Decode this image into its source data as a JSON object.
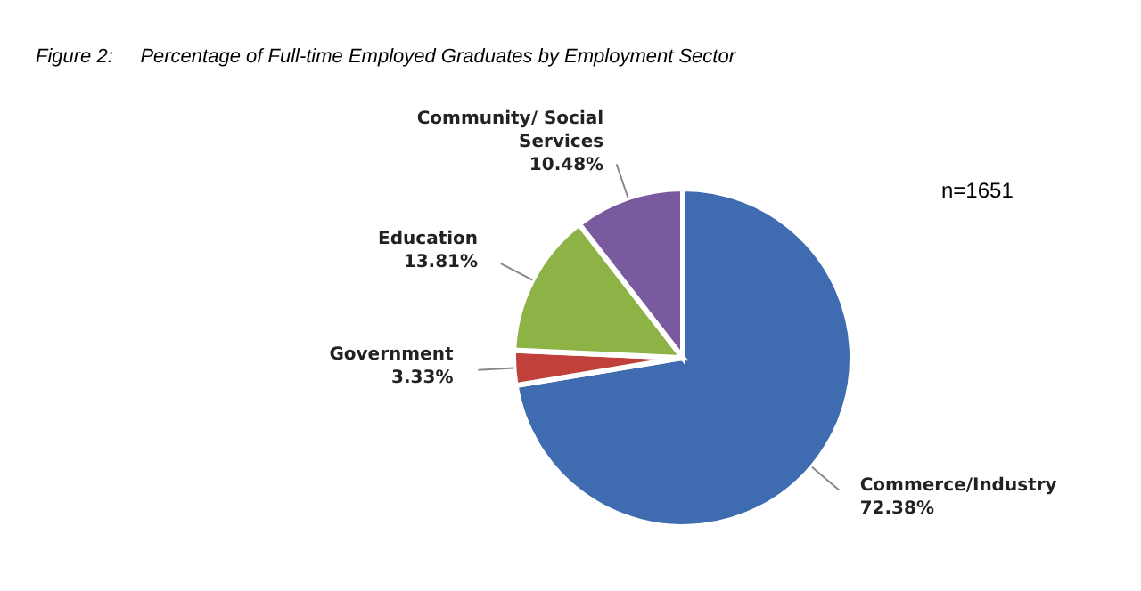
{
  "chart_data": {
    "type": "pie",
    "title": "Figure 2:     Percentage of Full-time Employed Graduates by Employment Sector",
    "categories": [
      "Commerce/Industry",
      "Government",
      "Education",
      "Community/ Social Services"
    ],
    "values": [
      72.38,
      3.33,
      13.81,
      10.48
    ],
    "value_labels": [
      "72.38%",
      "3.33%",
      "13.81%",
      "10.48%"
    ],
    "colors": [
      "#3f6cb0",
      "#c0403c",
      "#8db347",
      "#7a5a9e"
    ],
    "annotations": [
      "n=1651"
    ],
    "legend": false
  }
}
